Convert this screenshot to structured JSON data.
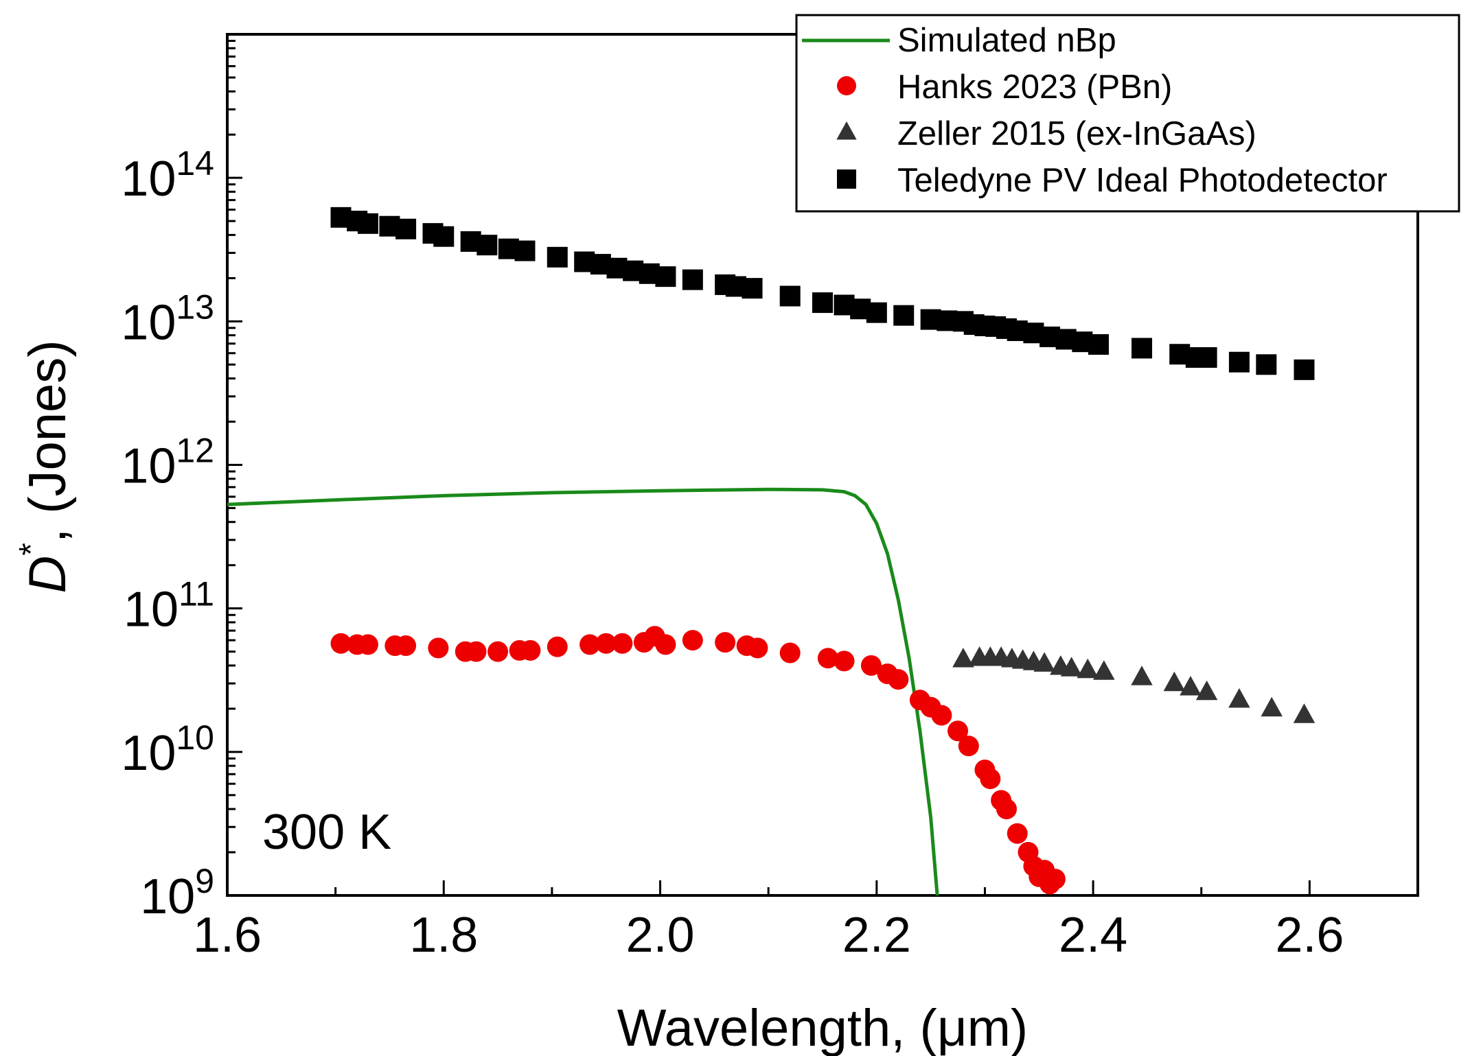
{
  "chart_data": {
    "type": "scatter",
    "title": "",
    "xlabel": "Wavelength, (μm)",
    "ylabel": "D*, (Jones)",
    "ylabel_main": "D",
    "ylabel_sup": "*",
    "ylabel_rest": ", (Jones)",
    "yscale": "log",
    "xlim": [
      1.6,
      2.7
    ],
    "ylim": [
      1000000000.0,
      1000000000000000.0
    ],
    "grid": false,
    "legend_position": "top-right",
    "annotation": "300 K",
    "x_ticks": [
      {
        "value": 1.6,
        "label": "1.6"
      },
      {
        "value": 1.8,
        "label": "1.8"
      },
      {
        "value": 2.0,
        "label": "2.0"
      },
      {
        "value": 2.2,
        "label": "2.2"
      },
      {
        "value": 2.4,
        "label": "2.4"
      },
      {
        "value": 2.6,
        "label": "2.6"
      }
    ],
    "y_ticks": [
      {
        "exp": 9,
        "base": "10",
        "sup": "9"
      },
      {
        "exp": 10,
        "base": "10",
        "sup": "10"
      },
      {
        "exp": 11,
        "base": "10",
        "sup": "11"
      },
      {
        "exp": 12,
        "base": "10",
        "sup": "12"
      },
      {
        "exp": 13,
        "base": "10",
        "sup": "13"
      },
      {
        "exp": 14,
        "base": "10",
        "sup": "14"
      }
    ],
    "series": [
      {
        "name": "Simulated nBp",
        "kind": "line",
        "color": "#1a8a1a",
        "points": [
          [
            1.6,
            530000000000.0
          ],
          [
            1.7,
            570000000000.0
          ],
          [
            1.8,
            610000000000.0
          ],
          [
            1.9,
            640000000000.0
          ],
          [
            2.0,
            660000000000.0
          ],
          [
            2.1,
            675000000000.0
          ],
          [
            2.15,
            670000000000.0
          ],
          [
            2.17,
            650000000000.0
          ],
          [
            2.18,
            610000000000.0
          ],
          [
            2.19,
            530000000000.0
          ],
          [
            2.2,
            390000000000.0
          ],
          [
            2.21,
            240000000000.0
          ],
          [
            2.22,
            115000000000.0
          ],
          [
            2.23,
            45000000000.0
          ],
          [
            2.24,
            14000000000.0
          ],
          [
            2.25,
            3500000000.0
          ],
          [
            2.256,
            1000000000.0
          ]
        ]
      },
      {
        "name": "Hanks 2023 (PBn)",
        "kind": "marker",
        "marker": "circle",
        "color": "#ee0000",
        "points": [
          [
            1.705,
            57000000000.0
          ],
          [
            1.72,
            56000000000.0
          ],
          [
            1.73,
            56000000000.0
          ],
          [
            1.755,
            55000000000.0
          ],
          [
            1.765,
            55000000000.0
          ],
          [
            1.795,
            53000000000.0
          ],
          [
            1.82,
            50000000000.0
          ],
          [
            1.83,
            50000000000.0
          ],
          [
            1.85,
            50000000000.0
          ],
          [
            1.87,
            51000000000.0
          ],
          [
            1.88,
            51000000000.0
          ],
          [
            1.905,
            54000000000.0
          ],
          [
            1.935,
            56000000000.0
          ],
          [
            1.95,
            57000000000.0
          ],
          [
            1.965,
            57000000000.0
          ],
          [
            1.985,
            58000000000.0
          ],
          [
            1.995,
            64000000000.0
          ],
          [
            2.005,
            56000000000.0
          ],
          [
            2.03,
            60000000000.0
          ],
          [
            2.06,
            58000000000.0
          ],
          [
            2.08,
            55000000000.0
          ],
          [
            2.09,
            53000000000.0
          ],
          [
            2.12,
            49000000000.0
          ],
          [
            2.155,
            45000000000.0
          ],
          [
            2.17,
            43000000000.0
          ],
          [
            2.195,
            40000000000.0
          ],
          [
            2.21,
            35000000000.0
          ],
          [
            2.22,
            32000000000.0
          ],
          [
            2.24,
            23000000000.0
          ],
          [
            2.25,
            20500000000.0
          ],
          [
            2.26,
            18000000000.0
          ],
          [
            2.275,
            14000000000.0
          ],
          [
            2.285,
            11000000000.0
          ],
          [
            2.3,
            7500000000.0
          ],
          [
            2.305,
            6500000000.0
          ],
          [
            2.315,
            4600000000.0
          ],
          [
            2.32,
            4000000000.0
          ],
          [
            2.33,
            2700000000.0
          ],
          [
            2.34,
            2000000000.0
          ],
          [
            2.345,
            1600000000.0
          ],
          [
            2.35,
            1350000000.0
          ],
          [
            2.355,
            1500000000.0
          ],
          [
            2.36,
            1200000000.0
          ],
          [
            2.365,
            1300000000.0
          ]
        ]
      },
      {
        "name": "Zeller 2015 (ex-InGaAs)",
        "kind": "marker",
        "marker": "triangle",
        "color": "#333333",
        "points": [
          [
            2.28,
            44000000000.0
          ],
          [
            2.295,
            45000000000.0
          ],
          [
            2.305,
            45000000000.0
          ],
          [
            2.315,
            45000000000.0
          ],
          [
            2.325,
            44000000000.0
          ],
          [
            2.335,
            43000000000.0
          ],
          [
            2.345,
            42000000000.0
          ],
          [
            2.355,
            41000000000.0
          ],
          [
            2.37,
            39000000000.0
          ],
          [
            2.38,
            38000000000.0
          ],
          [
            2.395,
            37000000000.0
          ],
          [
            2.41,
            36000000000.0
          ],
          [
            2.445,
            33000000000.0
          ],
          [
            2.475,
            30000000000.0
          ],
          [
            2.49,
            28000000000.0
          ],
          [
            2.505,
            26000000000.0
          ],
          [
            2.535,
            23000000000.0
          ],
          [
            2.565,
            20000000000.0
          ],
          [
            2.595,
            18000000000.0
          ]
        ]
      },
      {
        "name": "Teledyne PV Ideal Photodetector",
        "kind": "marker",
        "marker": "square",
        "color": "#000000",
        "points": [
          [
            1.705,
            53000000000000.0
          ],
          [
            1.72,
            50000000000000.0
          ],
          [
            1.73,
            48000000000000.0
          ],
          [
            1.75,
            46000000000000.0
          ],
          [
            1.765,
            44000000000000.0
          ],
          [
            1.79,
            41000000000000.0
          ],
          [
            1.8,
            39000000000000.0
          ],
          [
            1.825,
            36000000000000.0
          ],
          [
            1.84,
            34000000000000.0
          ],
          [
            1.86,
            32000000000000.0
          ],
          [
            1.875,
            31000000000000.0
          ],
          [
            1.905,
            28000000000000.0
          ],
          [
            1.93,
            26000000000000.0
          ],
          [
            1.945,
            25000000000000.0
          ],
          [
            1.96,
            23500000000000.0
          ],
          [
            1.975,
            22500000000000.0
          ],
          [
            1.99,
            21500000000000.0
          ],
          [
            2.005,
            20500000000000.0
          ],
          [
            2.03,
            19500000000000.0
          ],
          [
            2.06,
            18000000000000.0
          ],
          [
            2.07,
            17500000000000.0
          ],
          [
            2.085,
            17000000000000.0
          ],
          [
            2.12,
            15000000000000.0
          ],
          [
            2.15,
            13500000000000.0
          ],
          [
            2.17,
            13000000000000.0
          ],
          [
            2.185,
            12200000000000.0
          ],
          [
            2.2,
            11500000000000.0
          ],
          [
            2.225,
            11000000000000.0
          ],
          [
            2.25,
            10300000000000.0
          ],
          [
            2.265,
            10100000000000.0
          ],
          [
            2.28,
            10000000000000.0
          ],
          [
            2.29,
            9500000000000.0
          ],
          [
            2.3,
            9300000000000.0
          ],
          [
            2.31,
            9200000000000.0
          ],
          [
            2.32,
            8900000000000.0
          ],
          [
            2.33,
            8600000000000.0
          ],
          [
            2.345,
            8300000000000.0
          ],
          [
            2.36,
            7800000000000.0
          ],
          [
            2.375,
            7500000000000.0
          ],
          [
            2.39,
            7200000000000.0
          ],
          [
            2.405,
            6900000000000.0
          ],
          [
            2.445,
            6500000000000.0
          ],
          [
            2.48,
            5900000000000.0
          ],
          [
            2.495,
            5600000000000.0
          ],
          [
            2.505,
            5600000000000.0
          ],
          [
            2.535,
            5200000000000.0
          ],
          [
            2.56,
            5000000000000.0
          ],
          [
            2.595,
            4600000000000.0
          ]
        ]
      }
    ]
  }
}
